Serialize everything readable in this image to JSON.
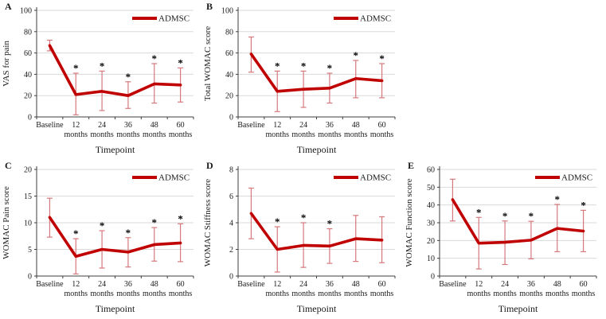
{
  "figure_type": "five-panel clinical outcomes line charts",
  "colors": {
    "line": "#c00000",
    "error_bar": "#d6787c",
    "grid": "#d9d9d9",
    "axis": "#3f3f3f",
    "text": "#1a1a1a",
    "star": "#000000",
    "background": "#ffffff"
  },
  "chart_data": [
    {
      "panel": "A",
      "type": "line",
      "legend": "ADMSC",
      "xlabel": "Timepoint",
      "ylabel": "VAS for pain",
      "ylim": [
        0,
        100
      ],
      "ytick_step": 20,
      "grid": true,
      "legend_position": "top-right",
      "categories": [
        "Baseline",
        "12 months",
        "24 months",
        "36 months",
        "48 months",
        "60 months"
      ],
      "series": [
        {
          "name": "ADMSC",
          "values": [
            67,
            21,
            24,
            20,
            31,
            30
          ],
          "err_low": [
            62,
            2,
            6,
            8,
            13,
            14
          ],
          "err_high": [
            72,
            41,
            43,
            33,
            50,
            46
          ]
        }
      ],
      "significance": [
        0,
        1,
        1,
        1,
        1,
        1
      ]
    },
    {
      "panel": "B",
      "type": "line",
      "legend": "ADMSC",
      "xlabel": "Timepoint",
      "ylabel": "Total WOMAC score",
      "ylim": [
        0,
        100
      ],
      "ytick_step": 20,
      "grid": true,
      "legend_position": "top-right",
      "categories": [
        "Baseline",
        "12 months",
        "24 months",
        "36 months",
        "48 months",
        "60 months"
      ],
      "series": [
        {
          "name": "ADMSC",
          "values": [
            59,
            24,
            26,
            27,
            36,
            34
          ],
          "err_low": [
            42,
            5,
            9,
            13,
            18,
            18
          ],
          "err_high": [
            75,
            43,
            43,
            41,
            53,
            50
          ]
        }
      ],
      "significance": [
        0,
        1,
        1,
        1,
        1,
        1
      ]
    },
    {
      "panel": "C",
      "type": "line",
      "legend": "ADMSC",
      "xlabel": "Timepoint",
      "ylabel": "WOMAC Pain score",
      "ylim": [
        0,
        20
      ],
      "ytick_step": 5,
      "grid": true,
      "legend_position": "top-right",
      "categories": [
        "Baseline",
        "12 months",
        "24 months",
        "36 months",
        "48 months",
        "60 months"
      ],
      "series": [
        {
          "name": "ADMSC",
          "values": [
            11,
            3.7,
            5,
            4.5,
            5.9,
            6.2
          ],
          "err_low": [
            7.3,
            0.4,
            1.5,
            1.7,
            2.8,
            2.7
          ],
          "err_high": [
            14.6,
            7,
            8.5,
            7.2,
            9.1,
            9.8
          ]
        }
      ],
      "significance": [
        0,
        1,
        1,
        1,
        1,
        1
      ]
    },
    {
      "panel": "D",
      "type": "line",
      "legend": "ADMSC",
      "xlabel": "Timepoint",
      "ylabel": "WOMAC Stiffness score",
      "ylim": [
        0,
        8
      ],
      "ytick_step": 2,
      "grid": true,
      "legend_position": "top-right",
      "categories": [
        "Baseline",
        "12 months",
        "24 months",
        "36 months",
        "48 months",
        "60 months"
      ],
      "series": [
        {
          "name": "ADMSC",
          "values": [
            4.7,
            2,
            2.3,
            2.25,
            2.8,
            2.7
          ],
          "err_low": [
            2.8,
            0.3,
            0.65,
            0.95,
            1.1,
            1
          ],
          "err_high": [
            6.6,
            3.7,
            4,
            3.55,
            4.55,
            4.45
          ]
        }
      ],
      "significance": [
        0,
        1,
        1,
        1,
        0,
        0
      ]
    },
    {
      "panel": "E",
      "type": "line",
      "legend": "ADMSC",
      "xlabel": "Timepoint",
      "ylabel": "WOMAC Function score",
      "ylim": [
        0,
        60
      ],
      "ytick_step": 10,
      "grid": true,
      "legend_position": "top-right",
      "categories": [
        "Baseline",
        "12 months",
        "24 months",
        "36 months",
        "48 months",
        "60 months"
      ],
      "series": [
        {
          "name": "ADMSC",
          "values": [
            43,
            18.5,
            19,
            20.2,
            26.8,
            25.3
          ],
          "err_low": [
            31,
            4,
            6.5,
            9.7,
            13.7,
            13.7
          ],
          "err_high": [
            54.5,
            33,
            31,
            30.8,
            40.3,
            37
          ]
        }
      ],
      "significance": [
        0,
        1,
        1,
        1,
        1,
        1
      ]
    }
  ]
}
